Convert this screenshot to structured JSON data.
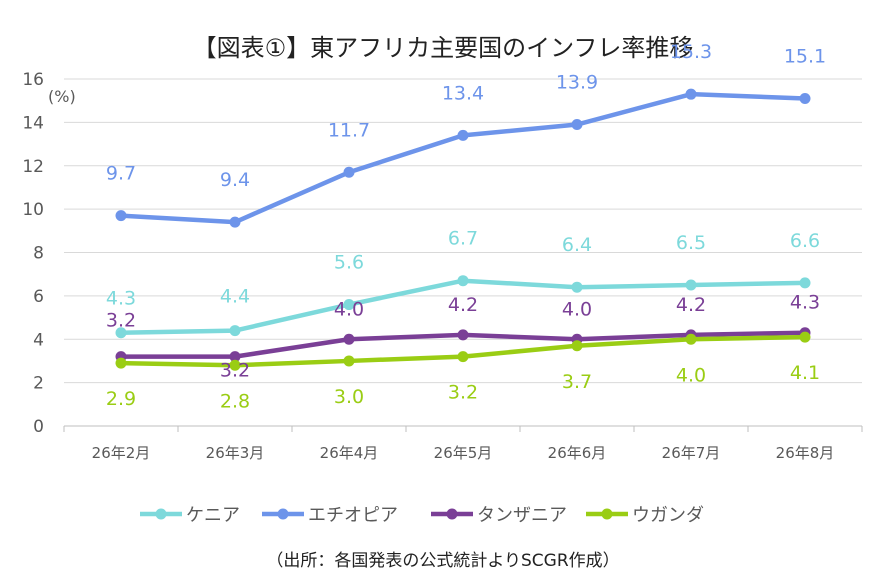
{
  "chart_data": {
    "type": "line",
    "title": "【図表①】東アフリカ主要国のインフレ率推移",
    "unit_label": "(%)",
    "source": "（出所：各国発表の公式統計よりSCGR作成）",
    "ylim": [
      0,
      16
    ],
    "yticks": [
      0,
      2,
      4,
      6,
      8,
      10,
      12,
      14,
      16
    ],
    "grid": true,
    "legend_position": "bottom",
    "categories": [
      "26年2月",
      "26年3月",
      "26年4月",
      "26年5月",
      "26年6月",
      "26年7月",
      "26年8月"
    ],
    "series": [
      {
        "name": "ケニア",
        "color": "#7DD9DB",
        "values": [
          4.3,
          4.4,
          5.6,
          6.7,
          6.4,
          6.5,
          6.6
        ]
      },
      {
        "name": "エチオピア",
        "color": "#6D94EA",
        "values": [
          9.7,
          9.4,
          11.7,
          13.4,
          13.9,
          15.3,
          15.1
        ]
      },
      {
        "name": "タンザニア",
        "color": "#7A3F96",
        "values": [
          3.2,
          3.2,
          4.0,
          4.2,
          4.0,
          4.2,
          4.3
        ]
      },
      {
        "name": "ウガンダ",
        "color": "#9ACD14",
        "values": [
          2.9,
          2.8,
          3.0,
          3.2,
          3.7,
          4.0,
          4.1
        ]
      }
    ]
  }
}
